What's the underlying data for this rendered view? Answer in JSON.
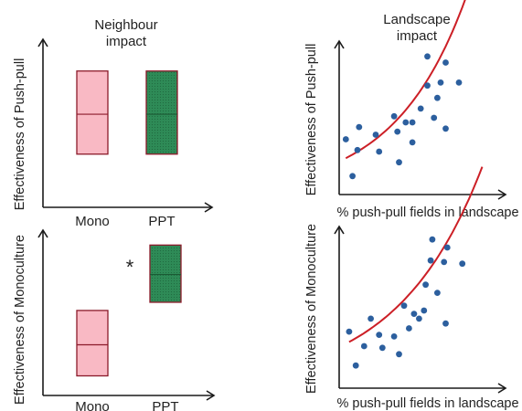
{
  "colors": {
    "mono_fill": "#f9b9c4",
    "ppt_fill": "#2e8b57",
    "box_stroke": "#8b1a2a",
    "point": "#2c5f9e",
    "curve": "#cc1f26",
    "axis": "#1a1a1a"
  },
  "chart_data": [
    {
      "id": "neighbour_pushpull",
      "type": "box",
      "title_lines": [
        "Neighbour",
        "impact"
      ],
      "ylabel": "Effectiveness of Push-pull",
      "xlabel": "",
      "categories": [
        "Mono",
        "PPT"
      ],
      "boxes": [
        {
          "category": "Mono",
          "low": 0.32,
          "mid": 0.56,
          "high": 0.82
        },
        {
          "category": "PPT",
          "low": 0.32,
          "mid": 0.56,
          "high": 0.82
        }
      ],
      "ylim": [
        0,
        1
      ],
      "annotation": ""
    },
    {
      "id": "neighbour_mono",
      "type": "box",
      "title_lines": [],
      "ylabel": "Effectiveness of Monoculture",
      "xlabel": "",
      "categories": [
        "Mono",
        "PPT"
      ],
      "boxes": [
        {
          "category": "Mono",
          "low": 0.12,
          "mid": 0.31,
          "high": 0.52
        },
        {
          "category": "PPT",
          "low": 0.57,
          "mid": 0.74,
          "high": 0.92
        }
      ],
      "ylim": [
        0,
        1
      ],
      "annotation": "*"
    },
    {
      "id": "landscape_pushpull",
      "type": "scatter",
      "title_lines": [
        "Landscape",
        "impact"
      ],
      "ylabel": "Effectiveness of Push-pull",
      "xlabel": "% push-pull fields in landscape",
      "xlim": [
        0,
        1
      ],
      "ylim": [
        0,
        1
      ],
      "points": [
        [
          0.04,
          0.36
        ],
        [
          0.08,
          0.12
        ],
        [
          0.12,
          0.44
        ],
        [
          0.11,
          0.29
        ],
        [
          0.22,
          0.39
        ],
        [
          0.24,
          0.28
        ],
        [
          0.33,
          0.51
        ],
        [
          0.35,
          0.41
        ],
        [
          0.36,
          0.21
        ],
        [
          0.4,
          0.47
        ],
        [
          0.44,
          0.47
        ],
        [
          0.44,
          0.34
        ],
        [
          0.49,
          0.56
        ],
        [
          0.53,
          0.71
        ],
        [
          0.53,
          0.9
        ],
        [
          0.57,
          0.5
        ],
        [
          0.59,
          0.63
        ],
        [
          0.61,
          0.73
        ],
        [
          0.64,
          0.86
        ],
        [
          0.64,
          0.43
        ],
        [
          0.72,
          0.73
        ]
      ],
      "trend": {
        "model": "exp",
        "a": 0.216,
        "b": 2.34
      }
    },
    {
      "id": "landscape_mono",
      "type": "scatter",
      "title_lines": [],
      "ylabel": "Effectiveness of Monoculture",
      "xlabel": "% push-pull fields in landscape",
      "xlim": [
        0,
        1
      ],
      "ylim": [
        0,
        1
      ],
      "points": [
        [
          0.06,
          0.35
        ],
        [
          0.1,
          0.14
        ],
        [
          0.15,
          0.26
        ],
        [
          0.19,
          0.43
        ],
        [
          0.24,
          0.33
        ],
        [
          0.26,
          0.25
        ],
        [
          0.33,
          0.32
        ],
        [
          0.36,
          0.21
        ],
        [
          0.39,
          0.51
        ],
        [
          0.42,
          0.37
        ],
        [
          0.45,
          0.46
        ],
        [
          0.48,
          0.43
        ],
        [
          0.51,
          0.48
        ],
        [
          0.52,
          0.64
        ],
        [
          0.55,
          0.79
        ],
        [
          0.56,
          0.92
        ],
        [
          0.59,
          0.59
        ],
        [
          0.63,
          0.78
        ],
        [
          0.64,
          0.4
        ],
        [
          0.65,
          0.87
        ],
        [
          0.74,
          0.77
        ]
      ],
      "trend": {
        "model": "exp",
        "a": 0.254,
        "b": 1.959
      }
    }
  ]
}
